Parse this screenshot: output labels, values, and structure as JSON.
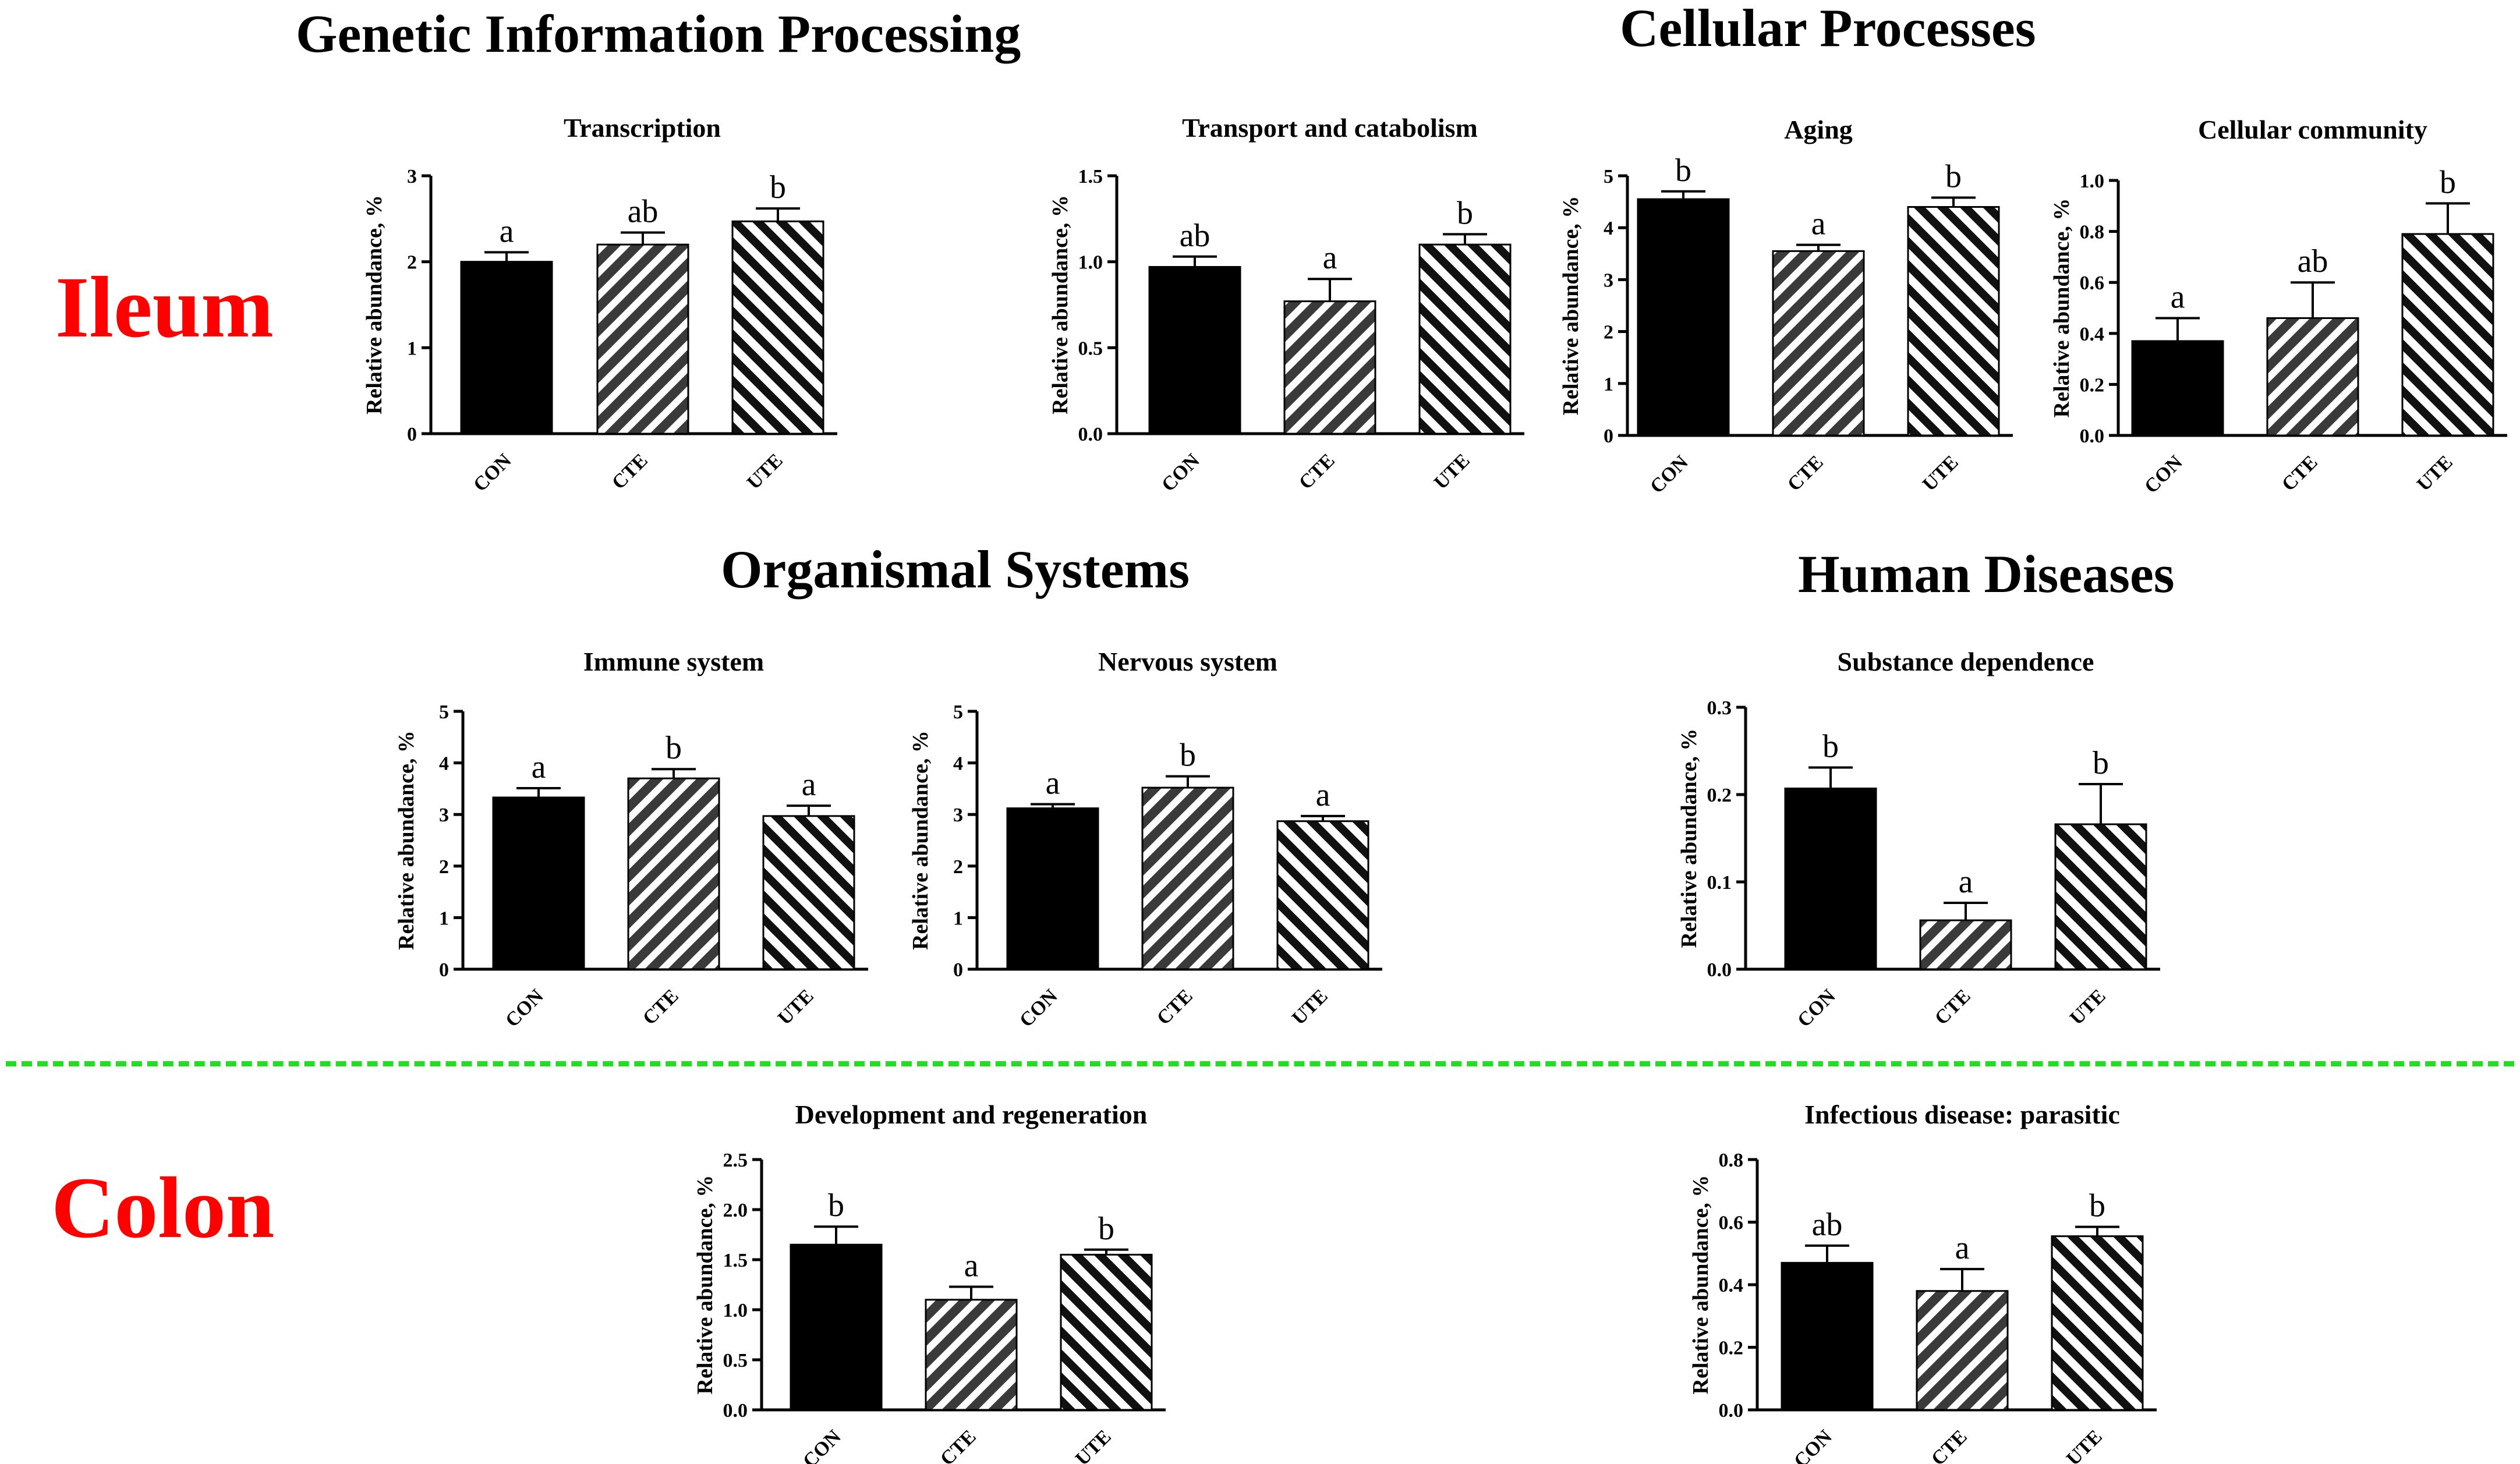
{
  "headings": {
    "genetic": "Genetic Information Processing",
    "cellular": "Cellular Processes",
    "organismal": "Organismal Systems",
    "human": "Human Diseases"
  },
  "regions": {
    "ileum": "Ileum",
    "colon": "Colon"
  },
  "colors": {
    "con": "#000000",
    "cte": "#3a3a3a",
    "ute": "#c8c8c8",
    "divider": "#22dd22",
    "region": "#ff0000"
  },
  "chart_data": [
    {
      "type": "bar",
      "title": "Transcription",
      "ylabel": "Relative abundance, %",
      "categories": [
        "CON",
        "CTE",
        "UTE"
      ],
      "ylim": [
        0,
        3
      ],
      "yticks": [
        "0",
        "1",
        "2",
        "3"
      ],
      "values": [
        2.0,
        2.2,
        2.47
      ],
      "errors": [
        0.11,
        0.14,
        0.15
      ],
      "letters": [
        "a",
        "ab",
        "b"
      ]
    },
    {
      "type": "bar",
      "title": "Transport and catabolism",
      "ylabel": "Relative abundance, %",
      "categories": [
        "CON",
        "CTE",
        "UTE"
      ],
      "ylim": [
        0,
        1.5
      ],
      "yticks": [
        "0.0",
        "0.5",
        "1.0",
        "1.5"
      ],
      "values": [
        0.97,
        0.77,
        1.1
      ],
      "errors": [
        0.06,
        0.13,
        0.06
      ],
      "letters": [
        "ab",
        "a",
        "b"
      ]
    },
    {
      "type": "bar",
      "title": "Aging",
      "ylabel": "Relative abundance, %",
      "categories": [
        "CON",
        "CTE",
        "UTE"
      ],
      "ylim": [
        0,
        5
      ],
      "yticks": [
        "0",
        "1",
        "2",
        "3",
        "4",
        "5"
      ],
      "values": [
        4.55,
        3.55,
        4.4
      ],
      "errors": [
        0.15,
        0.12,
        0.18
      ],
      "letters": [
        "b",
        "a",
        "b"
      ]
    },
    {
      "type": "bar",
      "title": "Cellular community",
      "ylabel": "Relative abundance, %",
      "categories": [
        "CON",
        "CTE",
        "UTE"
      ],
      "ylim": [
        0,
        1.0
      ],
      "yticks": [
        "0.0",
        "0.2",
        "0.4",
        "0.6",
        "0.8",
        "1.0"
      ],
      "values": [
        0.37,
        0.46,
        0.79
      ],
      "errors": [
        0.09,
        0.14,
        0.12
      ],
      "letters": [
        "a",
        "ab",
        "b"
      ]
    },
    {
      "type": "bar",
      "title": "Immune system",
      "ylabel": "Relative abundance, %",
      "categories": [
        "CON",
        "CTE",
        "UTE"
      ],
      "ylim": [
        0,
        5
      ],
      "yticks": [
        "0",
        "1",
        "2",
        "3",
        "4",
        "5"
      ],
      "values": [
        3.33,
        3.7,
        2.97
      ],
      "errors": [
        0.18,
        0.18,
        0.2
      ],
      "letters": [
        "a",
        "b",
        "a"
      ]
    },
    {
      "type": "bar",
      "title": "Nervous system",
      "ylabel": "Relative abundance, %",
      "categories": [
        "CON",
        "CTE",
        "UTE"
      ],
      "ylim": [
        0,
        5
      ],
      "yticks": [
        "0",
        "1",
        "2",
        "3",
        "4",
        "5"
      ],
      "values": [
        3.12,
        3.52,
        2.87
      ],
      "errors": [
        0.08,
        0.22,
        0.1
      ],
      "letters": [
        "a",
        "b",
        "a"
      ]
    },
    {
      "type": "bar",
      "title": "Substance dependence",
      "ylabel": "Relative abundance, %",
      "categories": [
        "CON",
        "CTE",
        "UTE"
      ],
      "ylim": [
        0,
        0.3
      ],
      "yticks": [
        "0.0",
        "0.1",
        "0.2",
        "0.3"
      ],
      "values": [
        0.207,
        0.056,
        0.166
      ],
      "errors": [
        0.024,
        0.02,
        0.046
      ],
      "letters": [
        "b",
        "a",
        "b"
      ]
    },
    {
      "type": "bar",
      "title": "Development and regeneration",
      "ylabel": "Relative abundance, %",
      "categories": [
        "CON",
        "CTE",
        "UTE"
      ],
      "ylim": [
        0,
        2.5
      ],
      "yticks": [
        "0.0",
        "0.5",
        "1.0",
        "1.5",
        "2.0",
        "2.5"
      ],
      "values": [
        1.65,
        1.1,
        1.55
      ],
      "errors": [
        0.18,
        0.13,
        0.05
      ],
      "letters": [
        "b",
        "a",
        "b"
      ]
    },
    {
      "type": "bar",
      "title": "Infectious disease: parasitic",
      "ylabel": "Relative abundance, %",
      "categories": [
        "CON",
        "CTE",
        "UTE"
      ],
      "ylim": [
        0,
        0.8
      ],
      "yticks": [
        "0.0",
        "0.2",
        "0.4",
        "0.6",
        "0.8"
      ],
      "values": [
        0.47,
        0.38,
        0.555
      ],
      "errors": [
        0.055,
        0.07,
        0.03
      ],
      "letters": [
        "ab",
        "a",
        "b"
      ]
    }
  ]
}
